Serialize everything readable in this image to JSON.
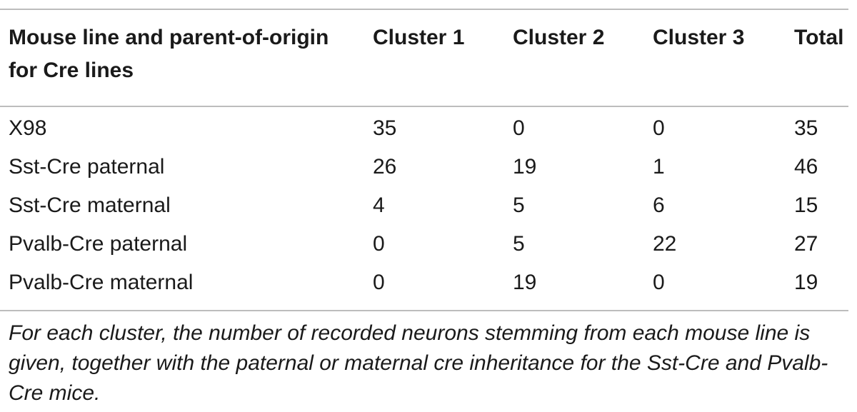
{
  "table": {
    "header": {
      "row_label": "Mouse line and parent-of-origin for Cre lines",
      "columns": [
        "Cluster 1",
        "Cluster 2",
        "Cluster 3",
        "Total"
      ]
    },
    "rows": [
      {
        "label": "X98",
        "values": [
          "35",
          "0",
          "0",
          "35"
        ]
      },
      {
        "label": "Sst-Cre paternal",
        "values": [
          "26",
          "19",
          "1",
          "46"
        ]
      },
      {
        "label": "Sst-Cre maternal",
        "values": [
          "4",
          "5",
          "6",
          "15"
        ]
      },
      {
        "label": "Pvalb-Cre paternal",
        "values": [
          "0",
          "5",
          "22",
          "27"
        ]
      },
      {
        "label": "Pvalb-Cre maternal",
        "values": [
          "0",
          "19",
          "0",
          "19"
        ]
      }
    ]
  },
  "footnote": "For each cluster, the number of recorded neurons stemming from each mouse line is given, together with the paternal or maternal cre inheritance for the Sst-Cre and Pvalb-Cre mice."
}
